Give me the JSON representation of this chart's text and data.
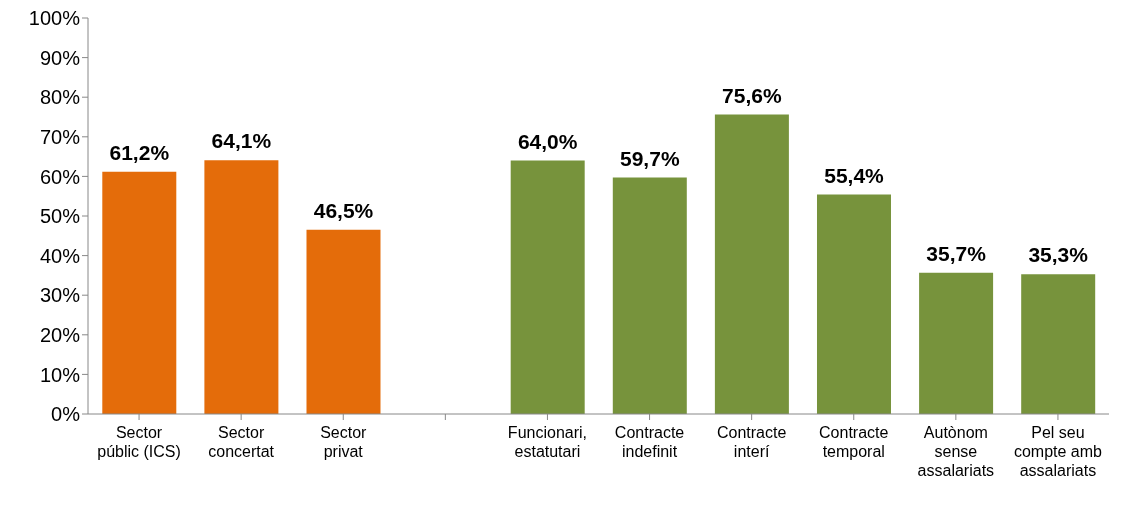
{
  "chart_data": {
    "type": "bar",
    "categories": [
      "Sector públic (ICS)",
      "Sector concertat",
      "Sector privat",
      null,
      "Funcionari, estatutari",
      "Contracte indefinit",
      "Contracte interí",
      "Contracte temporal",
      "Autònom sense assalariats",
      "Pel seu compte amb assalariats"
    ],
    "values": [
      61.2,
      64.1,
      46.5,
      null,
      64.0,
      59.7,
      75.6,
      55.4,
      35.7,
      35.3
    ],
    "colors": [
      "#e46c0a",
      "#e46c0a",
      "#e46c0a",
      null,
      "#77933c",
      "#77933c",
      "#77933c",
      "#77933c",
      "#77933c",
      "#77933c"
    ],
    "value_labels": [
      "61,2%",
      "64,1%",
      "46,5%",
      null,
      "64,0%",
      "59,7%",
      "75,6%",
      "55,4%",
      "35,7%",
      "35,3%"
    ],
    "ylim": [
      0,
      100
    ],
    "yticks": [
      {
        "value": 0,
        "label": "0%"
      },
      {
        "value": 10,
        "label": "10%"
      },
      {
        "value": 20,
        "label": "20%"
      },
      {
        "value": 30,
        "label": "30%"
      },
      {
        "value": 40,
        "label": "40%"
      },
      {
        "value": 50,
        "label": "50%"
      },
      {
        "value": 60,
        "label": "60%"
      },
      {
        "value": 70,
        "label": "70%"
      },
      {
        "value": 80,
        "label": "80%"
      },
      {
        "value": 90,
        "label": "90%"
      },
      {
        "value": 100,
        "label": "100%"
      }
    ],
    "grid": false,
    "legend": false
  }
}
